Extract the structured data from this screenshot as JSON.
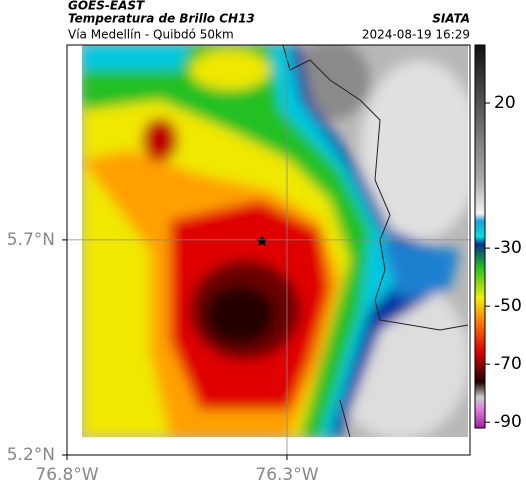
{
  "header": {
    "source": "GOES-EAST",
    "product": "Temperatura de Brillo CH13",
    "agency": "SIATA",
    "route": "Vía Medellín - Quibdó 50km",
    "timestamp": "2024-08-19 16:29"
  },
  "map": {
    "xlim": [
      -76.8,
      -75.884
    ],
    "ylim": [
      5.2,
      6.153
    ],
    "xticks": [
      {
        "value": -76.8,
        "label": "76.8°W"
      },
      {
        "value": -76.3,
        "label": "76.3°W"
      }
    ],
    "yticks": [
      {
        "value": 5.2,
        "label": "5.2°N"
      },
      {
        "value": 5.7,
        "label": "5.7°N"
      }
    ]
  },
  "colorbar": {
    "lim": [
      40,
      -92
    ],
    "ticks": [
      20,
      -30,
      -50,
      -70,
      -90
    ]
  }
}
